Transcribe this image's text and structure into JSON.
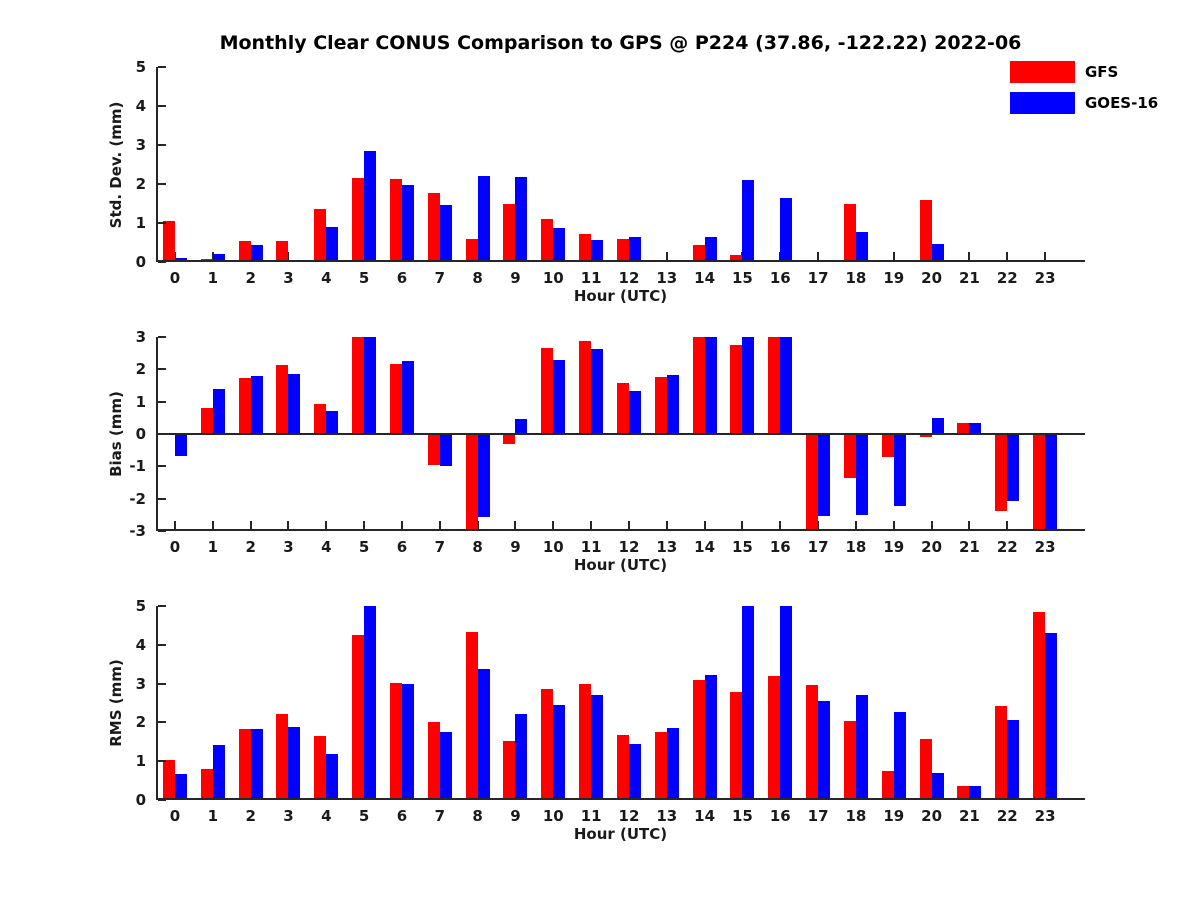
{
  "header": {
    "title": "Monthly Clear CONUS Comparison to GPS @ P224 (37.86, -122.22) 2022-06"
  },
  "legend": {
    "items": [
      {
        "label": "GFS",
        "color": "#ff0000"
      },
      {
        "label": "GOES-16",
        "color": "#0000ff"
      }
    ]
  },
  "axis_style": {
    "line_color": "#262626",
    "text_color": "#1a1a1a"
  },
  "chart_data": [
    {
      "type": "bar",
      "title": "Monthly Clear CONUS Comparison to GPS @ P224 (37.86, -122.22) 2022-06",
      "ylabel": "Std. Dev. (mm)",
      "xlabel": "Hour (UTC)",
      "ylim": [
        0,
        5
      ],
      "yticks": [
        0,
        1,
        2,
        3,
        4,
        5
      ],
      "grid": false,
      "legend_position": "top-right",
      "categories": [
        "0",
        "1",
        "2",
        "3",
        "4",
        "5",
        "6",
        "7",
        "8",
        "9",
        "10",
        "11",
        "12",
        "13",
        "14",
        "15",
        "16",
        "17",
        "18",
        "19",
        "20",
        "21",
        "22",
        "23"
      ],
      "series": [
        {
          "name": "GFS",
          "color": "#ff0000",
          "values": [
            1.05,
            0.07,
            0.55,
            0.55,
            1.35,
            2.15,
            2.12,
            1.78,
            0.58,
            1.48,
            1.1,
            0.73,
            0.58,
            0,
            0.44,
            0.17,
            0.06,
            0,
            1.48,
            0,
            1.58,
            0,
            0,
            0
          ]
        },
        {
          "name": "GOES-16",
          "color": "#0000ff",
          "values": [
            0.1,
            0.2,
            0.44,
            0,
            0.9,
            2.85,
            1.98,
            1.45,
            2.2,
            2.17,
            0.86,
            0.57,
            0.63,
            0,
            0.63,
            2.1,
            1.65,
            0,
            0.78,
            0,
            0.47,
            0,
            0,
            0
          ]
        }
      ]
    },
    {
      "type": "bar",
      "ylabel": "Bias (mm)",
      "xlabel": "Hour (UTC)",
      "ylim": [
        -3,
        3
      ],
      "yticks": [
        -3,
        -2,
        -1,
        0,
        1,
        2,
        3
      ],
      "grid": false,
      "categories": [
        "0",
        "1",
        "2",
        "3",
        "4",
        "5",
        "6",
        "7",
        "8",
        "9",
        "10",
        "11",
        "12",
        "13",
        "14",
        "15",
        "16",
        "17",
        "18",
        "19",
        "20",
        "21",
        "22",
        "23"
      ],
      "series": [
        {
          "name": "GFS",
          "color": "#ff0000",
          "values": [
            0,
            0.8,
            1.73,
            2.13,
            0.92,
            3.0,
            2.18,
            -0.97,
            -3.0,
            -0.3,
            2.65,
            2.88,
            1.57,
            1.75,
            3.0,
            2.76,
            3.0,
            -3.0,
            -1.35,
            -0.7,
            -0.1,
            0.33,
            -2.38,
            -3.0
          ]
        },
        {
          "name": "GOES-16",
          "color": "#0000ff",
          "values": [
            -0.67,
            1.38,
            1.79,
            1.85,
            0.71,
            3.0,
            2.25,
            -0.98,
            -2.56,
            0.45,
            2.3,
            2.62,
            1.32,
            1.81,
            3.0,
            3.0,
            3.0,
            -2.55,
            -2.52,
            -2.23,
            0.49,
            0.33,
            -2.08,
            -3.0
          ]
        }
      ]
    },
    {
      "type": "bar",
      "ylabel": "RMS (mm)",
      "xlabel": "Hour (UTC)",
      "ylim": [
        0,
        5
      ],
      "yticks": [
        0,
        1,
        2,
        3,
        4,
        5
      ],
      "grid": false,
      "categories": [
        "0",
        "1",
        "2",
        "3",
        "4",
        "5",
        "6",
        "7",
        "8",
        "9",
        "10",
        "11",
        "12",
        "13",
        "14",
        "15",
        "16",
        "17",
        "18",
        "19",
        "20",
        "21",
        "22",
        "23"
      ],
      "series": [
        {
          "name": "GFS",
          "color": "#ff0000",
          "values": [
            1.03,
            0.81,
            1.84,
            2.21,
            1.65,
            4.25,
            3.02,
            2.0,
            4.33,
            1.52,
            2.87,
            3.0,
            1.67,
            1.76,
            3.1,
            2.79,
            3.19,
            2.96,
            2.04,
            0.76,
            1.57,
            0.36,
            2.42,
            4.85
          ]
        },
        {
          "name": "GOES-16",
          "color": "#0000ff",
          "values": [
            0.68,
            1.42,
            1.83,
            1.88,
            1.18,
            5.0,
            3.0,
            1.74,
            3.37,
            2.21,
            2.44,
            2.7,
            1.44,
            1.85,
            3.21,
            5.0,
            5.0,
            2.55,
            2.71,
            2.27,
            0.7,
            0.36,
            2.06,
            4.31
          ]
        }
      ]
    }
  ]
}
